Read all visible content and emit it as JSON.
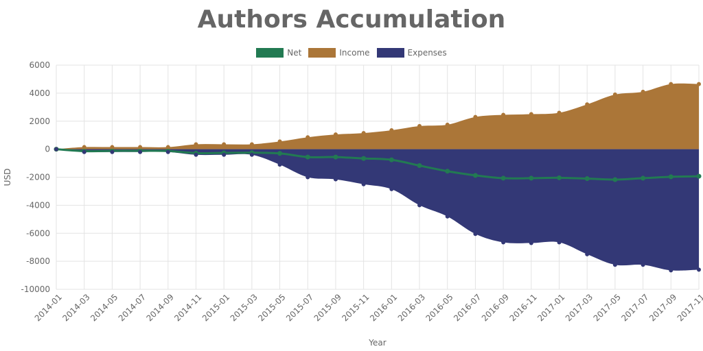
{
  "chart_data": {
    "type": "area",
    "title": "Authors Accumulation",
    "xlabel": "Year",
    "ylabel": "USD",
    "ylim": [
      -10000,
      6000
    ],
    "y_ticks": [
      6000,
      4000,
      2000,
      0,
      -2000,
      -4000,
      -6000,
      -8000,
      -10000
    ],
    "grid": true,
    "legend_position": "top-center",
    "x": [
      "2014-01",
      "2014-03",
      "2014-05",
      "2014-07",
      "2014-09",
      "2014-11",
      "2015-01",
      "2015-03",
      "2015-05",
      "2015-07",
      "2015-09",
      "2015-11",
      "2016-01",
      "2016-03",
      "2016-05",
      "2016-07",
      "2016-09",
      "2016-11",
      "2017-01",
      "2017-03",
      "2017-05",
      "2017-07",
      "2017-09",
      "2017-11"
    ],
    "series": [
      {
        "name": "Net",
        "type": "line",
        "color": "#227a52",
        "values": [
          0,
          -140,
          -120,
          -120,
          -130,
          -280,
          -260,
          -250,
          -300,
          -560,
          -560,
          -660,
          -760,
          -1170,
          -1570,
          -1870,
          -2070,
          -2070,
          -2040,
          -2100,
          -2170,
          -2070,
          -1970,
          -1930
        ]
      },
      {
        "name": "Income",
        "type": "area",
        "color": "#ab7638",
        "values": [
          0,
          150,
          150,
          150,
          150,
          350,
          350,
          350,
          550,
          850,
          1050,
          1150,
          1350,
          1650,
          1750,
          2300,
          2450,
          2500,
          2600,
          3200,
          3900,
          4100,
          4650,
          4650
        ]
      },
      {
        "name": "Expenses",
        "type": "area",
        "color": "#333876",
        "values": [
          0,
          -200,
          -200,
          -200,
          -200,
          -400,
          -400,
          -400,
          -1100,
          -2000,
          -2150,
          -2500,
          -2850,
          -4000,
          -4800,
          -6050,
          -6650,
          -6700,
          -6650,
          -7500,
          -8250,
          -8250,
          -8650,
          -8600
        ]
      }
    ]
  }
}
